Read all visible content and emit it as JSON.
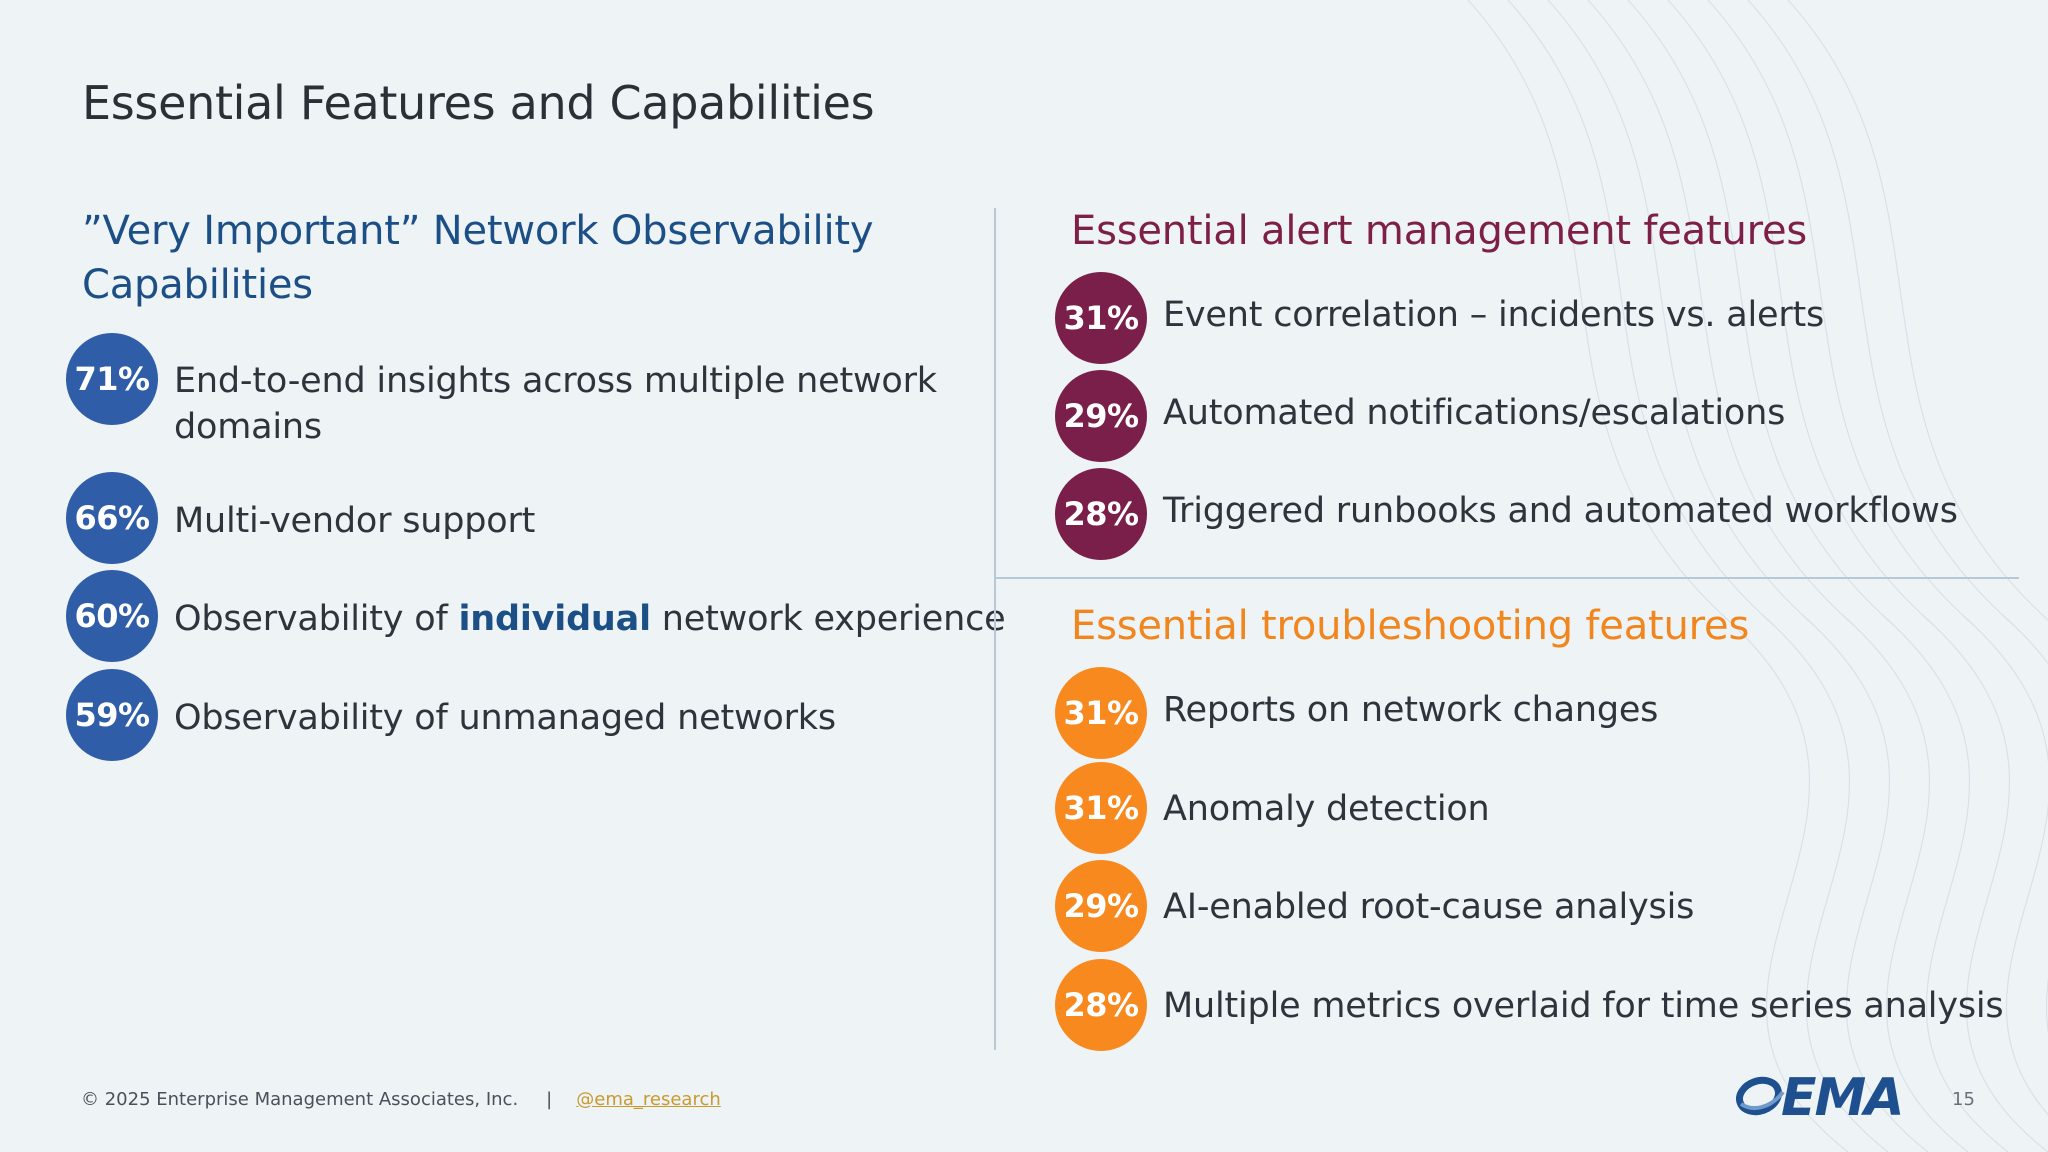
{
  "slide": {
    "title": "Essential Features and Capabilities"
  },
  "left_section": {
    "heading_line1": "”Very Important” Network Observability",
    "heading_line2": "Capabilities",
    "items": [
      {
        "percent": "71%",
        "line1": "End-to-end insights across multiple network",
        "line2": "domains"
      },
      {
        "percent": "66%",
        "text": "Multi-vendor support"
      },
      {
        "percent": "60%",
        "pre": "Observability of ",
        "emph": "individual",
        "post": " network experience"
      },
      {
        "percent": "59%",
        "text": "Observability of unmanaged networks"
      }
    ]
  },
  "alert_section": {
    "heading": "Essential alert management features",
    "items": [
      {
        "percent": "31%",
        "text": "Event correlation – incidents vs. alerts"
      },
      {
        "percent": "29%",
        "text": "Automated notifications/escalations"
      },
      {
        "percent": "28%",
        "text": "Triggered runbooks and automated workflows"
      }
    ]
  },
  "troubleshooting_section": {
    "heading": "Essential troubleshooting features",
    "items": [
      {
        "percent": "31%",
        "text": "Reports on network changes"
      },
      {
        "percent": "31%",
        "text": "Anomaly detection"
      },
      {
        "percent": "29%",
        "text": "AI-enabled root-cause analysis"
      },
      {
        "percent": "28%",
        "text": "Multiple metrics overlaid for time series analysis"
      }
    ]
  },
  "colors": {
    "blue": "#2f5da8",
    "maroon": "#7a1f4a",
    "orange": "#f7891f"
  },
  "footer": {
    "copyright": "© 2025 Enterprise Management Associates, Inc.",
    "separator": "|",
    "handle": "@ema_research",
    "logo_text": "EMA",
    "page_number": "15"
  }
}
